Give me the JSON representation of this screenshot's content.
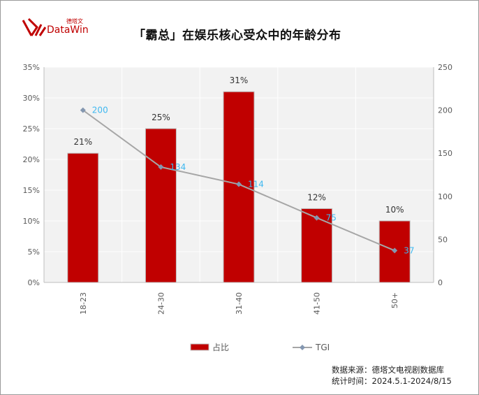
{
  "logo": {
    "cn": "德塔文",
    "en": "DataWin"
  },
  "chart_data": {
    "type": "bar+line",
    "title": "「霸总」在娱乐核心受众中的年龄分布",
    "categories": [
      "18-23",
      "24-30",
      "31-40",
      "41-50",
      "50+"
    ],
    "series": [
      {
        "name": "占比",
        "type": "bar",
        "axis": "left",
        "values": [
          21,
          25,
          31,
          12,
          10
        ],
        "labels": [
          "21%",
          "25%",
          "31%",
          "12%",
          "10%"
        ],
        "color": "#c00000"
      },
      {
        "name": "TGI",
        "type": "line",
        "axis": "right",
        "values": [
          200,
          134,
          114,
          75,
          37
        ],
        "labels": [
          "200",
          "134",
          "114",
          "75",
          "37"
        ],
        "color": "#a6a6a6"
      }
    ],
    "left_axis": {
      "ylim": [
        0,
        35
      ],
      "ticks": [
        "0%",
        "5%",
        "10%",
        "15%",
        "20%",
        "25%",
        "30%",
        "35%"
      ]
    },
    "right_axis": {
      "ylim": [
        0,
        250
      ],
      "ticks": [
        "0",
        "50",
        "100",
        "150",
        "200",
        "250"
      ]
    },
    "legend": "bottom",
    "grid": true
  },
  "source": {
    "line1": "数据来源：德塔文电视剧数据库",
    "line2": "统计时间：2024.5.1-2024/8/15"
  }
}
